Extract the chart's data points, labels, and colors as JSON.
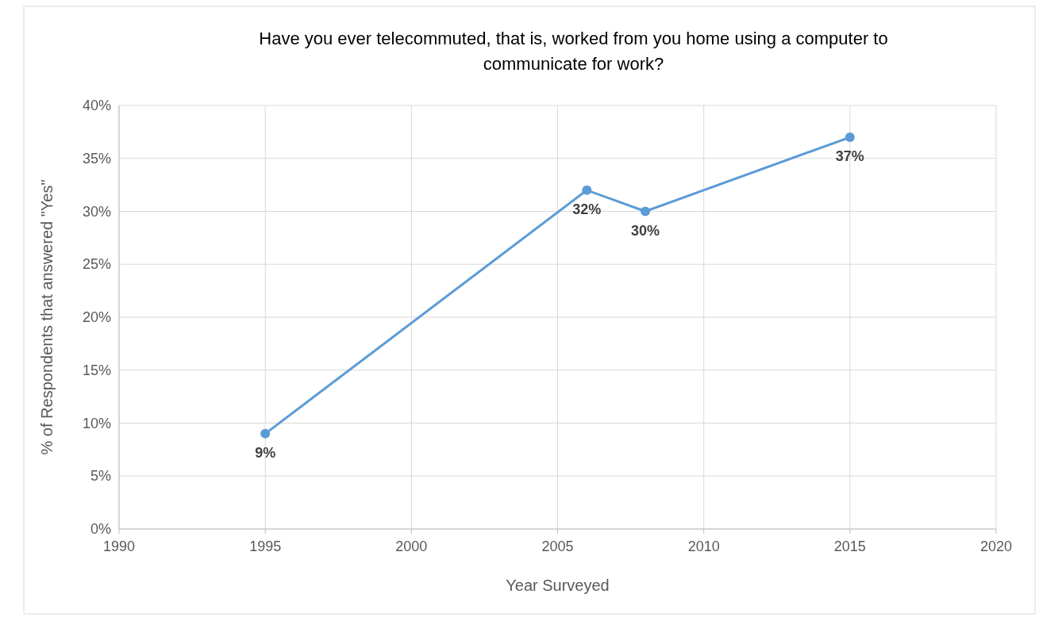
{
  "chart_data": {
    "type": "line",
    "title": "Have you ever telecommuted, that is, worked from you home using a computer to communicate for work?",
    "xlabel": "Year Surveyed",
    "ylabel": "% of Respondents that answered \"Yes\"",
    "x": [
      1995,
      2006,
      2008,
      2015
    ],
    "series": [
      {
        "color": "#5b9bd5",
        "values": [
          9,
          32,
          30,
          37
        ],
        "value_labels": [
          "9%",
          "32%",
          "30%",
          "37%"
        ]
      }
    ],
    "xlim": [
      1990,
      2020
    ],
    "xticks": [
      1990,
      1995,
      2000,
      2005,
      2010,
      2015,
      2020
    ],
    "ylim": [
      0,
      40
    ],
    "yticks": [
      {
        "value": 0,
        "label": "0%"
      },
      {
        "value": 5,
        "label": "5%"
      },
      {
        "value": 10,
        "label": "10%"
      },
      {
        "value": 15,
        "label": "15%"
      },
      {
        "value": 20,
        "label": "20%"
      },
      {
        "value": 25,
        "label": "25%"
      },
      {
        "value": 30,
        "label": "30%"
      },
      {
        "value": 35,
        "label": "35%"
      },
      {
        "value": 40,
        "label": "40%"
      }
    ],
    "grid": true,
    "marker": "circle",
    "line_style": "solid"
  }
}
